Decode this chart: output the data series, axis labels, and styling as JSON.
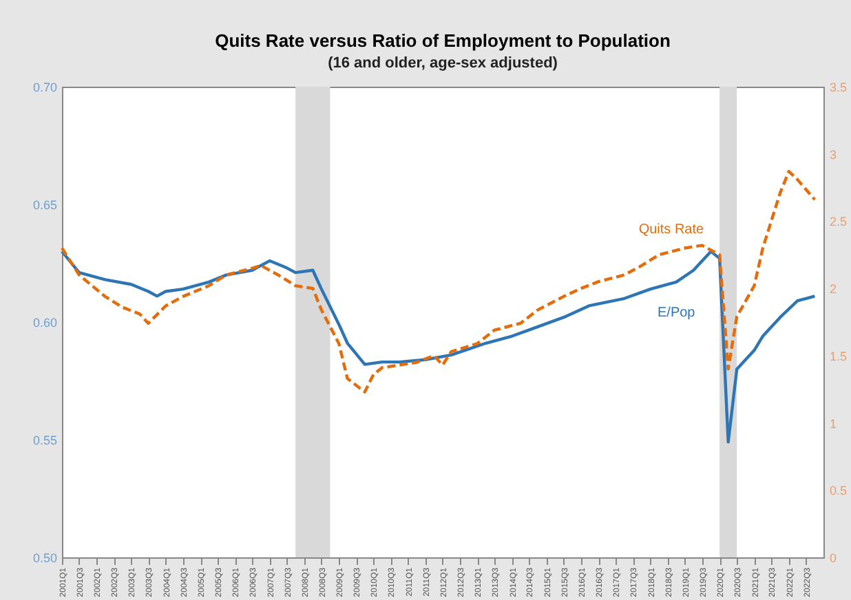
{
  "chart_data": {
    "type": "line",
    "title": "Quits Rate versus Ratio of Employment to Population",
    "subtitle": "(16 and older, age-sex adjusted)",
    "xlim": [
      "2001-01",
      "2023-01"
    ],
    "xticks": [
      {
        "value": "2001-01",
        "label": "2001Q1"
      },
      {
        "value": "2001-07",
        "label": "2001Q3"
      },
      {
        "value": "2002-01",
        "label": "2002Q1"
      },
      {
        "value": "2002-07",
        "label": "2002Q3"
      },
      {
        "value": "2003-01",
        "label": "2003Q1"
      },
      {
        "value": "2003-07",
        "label": "2003Q3"
      },
      {
        "value": "2004-01",
        "label": "2004Q1"
      },
      {
        "value": "2004-07",
        "label": "2004Q3"
      },
      {
        "value": "2005-01",
        "label": "2005Q1"
      },
      {
        "value": "2005-07",
        "label": "2005Q3"
      },
      {
        "value": "2006-01",
        "label": "2006Q1"
      },
      {
        "value": "2006-07",
        "label": "2006Q3"
      },
      {
        "value": "2007-01",
        "label": "2007Q1"
      },
      {
        "value": "2007-07",
        "label": "2007Q3"
      },
      {
        "value": "2008-01",
        "label": "2008Q1"
      },
      {
        "value": "2008-07",
        "label": "2008Q3"
      },
      {
        "value": "2009-01",
        "label": "2009Q1"
      },
      {
        "value": "2009-07",
        "label": "2009Q3"
      },
      {
        "value": "2010-01",
        "label": "2010Q1"
      },
      {
        "value": "2010-07",
        "label": "2010Q3"
      },
      {
        "value": "2011-01",
        "label": "2011Q1"
      },
      {
        "value": "2011-07",
        "label": "2011Q3"
      },
      {
        "value": "2012-01",
        "label": "2012Q1"
      },
      {
        "value": "2012-07",
        "label": "2012Q3"
      },
      {
        "value": "2013-01",
        "label": "2013Q1"
      },
      {
        "value": "2013-07",
        "label": "2013Q3"
      },
      {
        "value": "2014-01",
        "label": "2014Q1"
      },
      {
        "value": "2014-07",
        "label": "2014Q3"
      },
      {
        "value": "2015-01",
        "label": "2015Q1"
      },
      {
        "value": "2015-07",
        "label": "2015Q3"
      },
      {
        "value": "2016-01",
        "label": "2016Q1"
      },
      {
        "value": "2016-07",
        "label": "2016Q3"
      },
      {
        "value": "2017-01",
        "label": "2017Q1"
      },
      {
        "value": "2017-07",
        "label": "2017Q3"
      },
      {
        "value": "2018-01",
        "label": "2018Q1"
      },
      {
        "value": "2018-07",
        "label": "2018Q3"
      },
      {
        "value": "2019-01",
        "label": "2019Q1"
      },
      {
        "value": "2019-07",
        "label": "2019Q3"
      },
      {
        "value": "2020-01",
        "label": "2020Q1"
      },
      {
        "value": "2020-07",
        "label": "2020Q3"
      },
      {
        "value": "2021-01",
        "label": "2021Q1"
      },
      {
        "value": "2021-07",
        "label": "2021Q3"
      },
      {
        "value": "2022-01",
        "label": "2022Q1"
      },
      {
        "value": "2022-07",
        "label": "2022Q3"
      }
    ],
    "ylim": [
      0.5,
      0.7
    ],
    "yticks": [
      {
        "value": 0.5,
        "label": "0.50"
      },
      {
        "value": 0.55,
        "label": "0.55"
      },
      {
        "value": 0.6,
        "label": "0.60"
      },
      {
        "value": 0.65,
        "label": "0.65"
      },
      {
        "value": 0.7,
        "label": "0.70"
      }
    ],
    "y2lim": [
      0,
      3.5
    ],
    "y2ticks": [
      0,
      0.5,
      1,
      1.5,
      2,
      2.5,
      3,
      3.5
    ],
    "series": [
      {
        "name": "E/Pop",
        "color": "#2e75b6",
        "line_style": "solid",
        "x": [
          "2001-01",
          "2001-07",
          "2002-04",
          "2003-01",
          "2003-07",
          "2003-10",
          "2004-01",
          "2004-07",
          "2005-04",
          "2005-10",
          "2006-07",
          "2007-01",
          "2007-07",
          "2007-10",
          "2008-04",
          "2008-07",
          "2009-01",
          "2009-04",
          "2009-10",
          "2010-04",
          "2010-10",
          "2011-07",
          "2012-04",
          "2013-04",
          "2014-01",
          "2014-10",
          "2015-07",
          "2016-04",
          "2017-04",
          "2018-01",
          "2018-10",
          "2019-04",
          "2019-10",
          "2020-01",
          "2020-04",
          "2020-07",
          "2021-01",
          "2021-04",
          "2021-10",
          "2022-04",
          "2022-07",
          "2022-10"
        ],
        "values": [
          0.63,
          0.621,
          0.618,
          0.616,
          0.613,
          0.611,
          0.613,
          0.614,
          0.617,
          0.62,
          0.622,
          0.626,
          0.623,
          0.621,
          0.622,
          0.614,
          0.599,
          0.591,
          0.582,
          0.583,
          0.583,
          0.584,
          0.586,
          0.591,
          0.594,
          0.598,
          0.602,
          0.607,
          0.61,
          0.614,
          0.617,
          0.622,
          0.63,
          0.627,
          0.549,
          0.58,
          0.588,
          0.594,
          0.602,
          0.609,
          0.61,
          0.611
        ]
      },
      {
        "name": "Quits Rate",
        "color": "#e46c0a",
        "line_style": "dashed",
        "axis": "y2",
        "x": [
          "2001-01",
          "2001-07",
          "2002-04",
          "2002-10",
          "2003-04",
          "2003-07",
          "2004-01",
          "2004-07",
          "2005-04",
          "2005-10",
          "2006-07",
          "2006-10",
          "2007-04",
          "2007-10",
          "2008-04",
          "2008-07",
          "2009-01",
          "2009-04",
          "2009-10",
          "2010-01",
          "2010-04",
          "2010-10",
          "2011-04",
          "2011-10",
          "2012-01",
          "2012-04",
          "2013-01",
          "2013-07",
          "2014-04",
          "2014-10",
          "2015-07",
          "2016-01",
          "2016-07",
          "2017-04",
          "2017-10",
          "2018-04",
          "2019-01",
          "2019-07",
          "2020-01",
          "2020-04",
          "2020-07",
          "2021-01",
          "2021-04",
          "2021-10",
          "2022-01",
          "2022-04",
          "2022-10"
        ],
        "values": [
          2.3,
          2.1,
          1.94,
          1.86,
          1.81,
          1.74,
          1.87,
          1.94,
          2.02,
          2.1,
          2.15,
          2.17,
          2.1,
          2.02,
          2.0,
          1.84,
          1.59,
          1.33,
          1.23,
          1.36,
          1.41,
          1.43,
          1.45,
          1.5,
          1.43,
          1.53,
          1.59,
          1.69,
          1.74,
          1.84,
          1.94,
          2.0,
          2.05,
          2.1,
          2.17,
          2.25,
          2.3,
          2.32,
          2.25,
          1.4,
          1.79,
          2.02,
          2.3,
          2.71,
          2.87,
          2.81,
          2.66
        ]
      }
    ],
    "bands": [
      {
        "axis": "x",
        "from": "2007-10",
        "to": "2008-10",
        "label": null,
        "color": "#d9d9d9"
      },
      {
        "axis": "x",
        "from": "2020-01",
        "to": "2020-07",
        "label": null,
        "color": "#d9d9d9"
      }
    ],
    "marker": "none",
    "grid": false,
    "legend": false
  }
}
